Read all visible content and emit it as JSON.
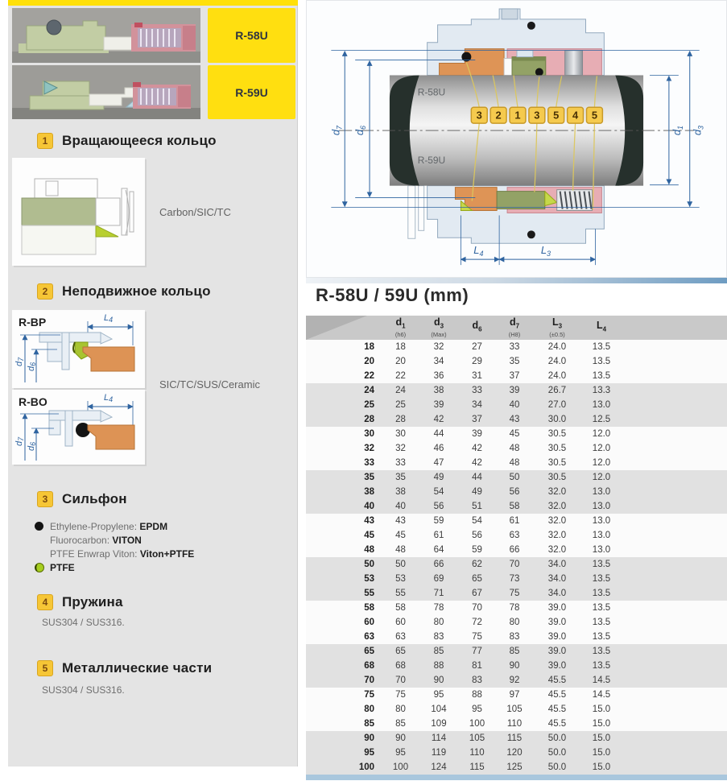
{
  "products": [
    {
      "label": "R-58U"
    },
    {
      "label": "R-59U"
    }
  ],
  "sections": {
    "s1": {
      "num": "1",
      "title": "Вращающееся кольцо",
      "material": "Carbon/SIC/TC"
    },
    "s2": {
      "num": "2",
      "title": "Неподвижное кольцо",
      "material": "SIC/TC/SUS/Ceramic",
      "variant_a": "R-BP",
      "variant_b": "R-BO"
    },
    "s3": {
      "num": "3",
      "title": "Сильфон",
      "items": [
        {
          "icon": "black-dot",
          "label": "Ethylene-Propylene:",
          "value": "EPDM"
        },
        {
          "icon": "none",
          "label": "Fluorocarbon:",
          "value": "VITON"
        },
        {
          "icon": "none",
          "label": "PTFE Enwrap Viton:",
          "value": "Viton+PTFE"
        },
        {
          "icon": "green-ball",
          "label": "",
          "value": "PTFE"
        }
      ]
    },
    "s4": {
      "num": "4",
      "title": "Пружина",
      "material": "SUS304 / SUS316."
    },
    "s5": {
      "num": "5",
      "title": "Металлические части",
      "material": "SUS304 / SUS316."
    }
  },
  "diagram": {
    "shaft_top_label": "R-58U",
    "shaft_bottom_label": "R-59U",
    "callouts": [
      "3",
      "2",
      "1",
      "3",
      "5",
      "4",
      "5"
    ],
    "dims": {
      "d7": {
        "l": "d",
        "s": "7"
      },
      "d6": {
        "l": "d",
        "s": "6"
      },
      "d1": {
        "l": "d",
        "s": "1"
      },
      "d3": {
        "l": "d",
        "s": "3"
      },
      "L4": {
        "l": "L",
        "s": "4"
      },
      "L3": {
        "l": "L",
        "s": "3"
      }
    }
  },
  "table": {
    "title": "R-58U / 59U (mm)",
    "columns": [
      {
        "l": "d",
        "s": "1",
        "note": "(h6)"
      },
      {
        "l": "d",
        "s": "3",
        "note": "(Max)"
      },
      {
        "l": "d",
        "s": "6",
        "note": ""
      },
      {
        "l": "d",
        "s": "7",
        "note": "(H8)"
      },
      {
        "l": "L",
        "s": "3",
        "note": "(±0.5)"
      },
      {
        "l": "L",
        "s": "4",
        "note": ""
      }
    ],
    "rows": [
      [
        "18",
        "18",
        "32",
        "27",
        "33",
        "24.0",
        "13.5"
      ],
      [
        "20",
        "20",
        "34",
        "29",
        "35",
        "24.0",
        "13.5"
      ],
      [
        "22",
        "22",
        "36",
        "31",
        "37",
        "24.0",
        "13.5"
      ],
      [
        "24",
        "24",
        "38",
        "33",
        "39",
        "26.7",
        "13.3"
      ],
      [
        "25",
        "25",
        "39",
        "34",
        "40",
        "27.0",
        "13.0"
      ],
      [
        "28",
        "28",
        "42",
        "37",
        "43",
        "30.0",
        "12.5"
      ],
      [
        "30",
        "30",
        "44",
        "39",
        "45",
        "30.5",
        "12.0"
      ],
      [
        "32",
        "32",
        "46",
        "42",
        "48",
        "30.5",
        "12.0"
      ],
      [
        "33",
        "33",
        "47",
        "42",
        "48",
        "30.5",
        "12.0"
      ],
      [
        "35",
        "35",
        "49",
        "44",
        "50",
        "30.5",
        "12.0"
      ],
      [
        "38",
        "38",
        "54",
        "49",
        "56",
        "32.0",
        "13.0"
      ],
      [
        "40",
        "40",
        "56",
        "51",
        "58",
        "32.0",
        "13.0"
      ],
      [
        "43",
        "43",
        "59",
        "54",
        "61",
        "32.0",
        "13.0"
      ],
      [
        "45",
        "45",
        "61",
        "56",
        "63",
        "32.0",
        "13.0"
      ],
      [
        "48",
        "48",
        "64",
        "59",
        "66",
        "32.0",
        "13.0"
      ],
      [
        "50",
        "50",
        "66",
        "62",
        "70",
        "34.0",
        "13.5"
      ],
      [
        "53",
        "53",
        "69",
        "65",
        "73",
        "34.0",
        "13.5"
      ],
      [
        "55",
        "55",
        "71",
        "67",
        "75",
        "34.0",
        "13.5"
      ],
      [
        "58",
        "58",
        "78",
        "70",
        "78",
        "39.0",
        "13.5"
      ],
      [
        "60",
        "60",
        "80",
        "72",
        "80",
        "39.0",
        "13.5"
      ],
      [
        "63",
        "63",
        "83",
        "75",
        "83",
        "39.0",
        "13.5"
      ],
      [
        "65",
        "65",
        "85",
        "77",
        "85",
        "39.0",
        "13.5"
      ],
      [
        "68",
        "68",
        "88",
        "81",
        "90",
        "39.0",
        "13.5"
      ],
      [
        "70",
        "70",
        "90",
        "83",
        "92",
        "45.5",
        "14.5"
      ],
      [
        "75",
        "75",
        "95",
        "88",
        "97",
        "45.5",
        "14.5"
      ],
      [
        "80",
        "80",
        "104",
        "95",
        "105",
        "45.5",
        "15.0"
      ],
      [
        "85",
        "85",
        "109",
        "100",
        "110",
        "45.5",
        "15.0"
      ],
      [
        "90",
        "90",
        "114",
        "105",
        "115",
        "50.0",
        "15.0"
      ],
      [
        "95",
        "95",
        "119",
        "110",
        "120",
        "50.0",
        "15.0"
      ],
      [
        "100",
        "100",
        "124",
        "115",
        "125",
        "50.0",
        "15.0"
      ]
    ]
  },
  "colors": {
    "accent_yellow": "#ffdf10",
    "callout_yellow": "#f5ca4e",
    "dim_blue": "#2f64a0",
    "component_orange": "#de9456",
    "component_green": "#93a266",
    "component_pink": "#e7adb4",
    "row_shaded": "#e1e1e1"
  }
}
